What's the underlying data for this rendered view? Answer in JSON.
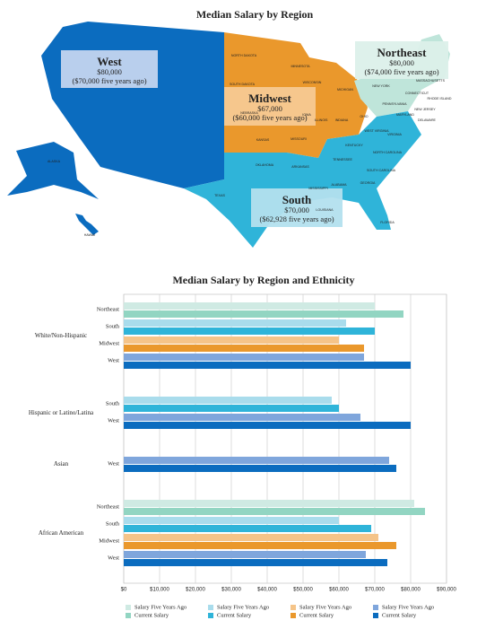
{
  "map": {
    "title": "Median Salary by Region",
    "regions": [
      {
        "name": "West",
        "current": "$80,000",
        "five_years_ago": "($70,000 five years ago)"
      },
      {
        "name": "Midwest",
        "current": "$67,000",
        "five_years_ago": "($60,000 five years ago)"
      },
      {
        "name": "Northeast",
        "current": "$80,000",
        "five_years_ago": "($74,000 five years ago)"
      },
      {
        "name": "South",
        "current": "$70,000",
        "five_years_ago": "($62,928 five years ago)"
      }
    ],
    "state_labels": [
      "NORTH DAKOTA",
      "MINNESOTA",
      "SOUTH DAKOTA",
      "WISCONSIN",
      "MICHIGAN",
      "IOWA",
      "NEBRASKA",
      "ILLINOIS",
      "INDIANA",
      "OHIO",
      "KANSAS",
      "MISSOURI",
      "NEW YORK",
      "PENNSYLVANIA",
      "NEW JERSEY",
      "DELAWARE",
      "MARYLAND",
      "WEST VIRGINIA",
      "VIRGINIA",
      "KENTUCKY",
      "TENNESSEE",
      "NORTH CAROLINA",
      "SOUTH CAROLINA",
      "OKLAHOMA",
      "ARKANSAS",
      "TEXAS",
      "MISSISSIPPI",
      "ALABAMA",
      "GEORGIA",
      "LOUISIANA",
      "FLORIDA",
      "ALASKA",
      "HAWAII",
      "MASSACHUSETTS",
      "CONNECTICUT",
      "RHODE ISLAND"
    ]
  },
  "chart_data": {
    "type": "bar",
    "orientation": "horizontal",
    "title": "Median Salary by Region and Ethnicity",
    "groups": [
      {
        "name": "White/Non-Hispanic",
        "categories": [
          "Northeast",
          "South",
          "Midwest",
          "West"
        ]
      },
      {
        "name": "Hispanic or Latino/Latina",
        "categories": [
          "South",
          "West"
        ]
      },
      {
        "name": "Asian",
        "categories": [
          "West"
        ]
      },
      {
        "name": "African American",
        "categories": [
          "Northeast",
          "South",
          "Midwest",
          "West"
        ]
      }
    ],
    "series": [
      {
        "name": "Salary Five Years Ago",
        "color": "#cfeae3",
        "values": [
          70000,
          null,
          null,
          null,
          null,
          null,
          null,
          81000,
          null,
          null,
          null
        ]
      },
      {
        "name": "Current Salary",
        "color": "#92d5c2",
        "values": [
          78000,
          null,
          null,
          null,
          null,
          null,
          null,
          84000,
          null,
          null,
          null
        ]
      },
      {
        "name": "Salary Five Years Ago",
        "color": "#a9dcec",
        "values": [
          null,
          62000,
          null,
          null,
          58000,
          null,
          null,
          null,
          60000,
          null,
          null
        ]
      },
      {
        "name": "Current Salary",
        "color": "#2fb4d9",
        "values": [
          null,
          70000,
          null,
          null,
          60000,
          null,
          null,
          null,
          69000,
          null,
          null
        ]
      },
      {
        "name": "Salary Five Years Ago",
        "color": "#f5c489",
        "values": [
          null,
          null,
          60000,
          null,
          null,
          null,
          null,
          null,
          null,
          71000,
          null
        ]
      },
      {
        "name": "Current Salary",
        "color": "#ea982c",
        "values": [
          null,
          null,
          67000,
          null,
          null,
          null,
          null,
          null,
          null,
          76000,
          null
        ]
      },
      {
        "name": "Salary Five Years Ago",
        "color": "#7fa6dc",
        "values": [
          null,
          null,
          null,
          67000,
          null,
          66000,
          74000,
          null,
          null,
          null,
          67500
        ]
      },
      {
        "name": "Current Salary",
        "color": "#0b6cbf",
        "values": [
          null,
          null,
          null,
          80000,
          null,
          80000,
          76000,
          null,
          null,
          null,
          73500
        ]
      }
    ],
    "xlim": [
      0,
      90000
    ],
    "xticks": [
      {
        "value": 0,
        "label": "$0"
      },
      {
        "value": 10000,
        "label": "$10,000"
      },
      {
        "value": 20000,
        "label": "$20,000"
      },
      {
        "value": 30000,
        "label": "$30,000"
      },
      {
        "value": 40000,
        "label": "$40,000"
      },
      {
        "value": 50000,
        "label": "$50,000"
      },
      {
        "value": 60000,
        "label": "$60,000"
      },
      {
        "value": 70000,
        "label": "$70,000"
      },
      {
        "value": 80000,
        "label": "$80,000"
      },
      {
        "value": 90000,
        "label": "$90,000"
      }
    ],
    "grid": true
  }
}
